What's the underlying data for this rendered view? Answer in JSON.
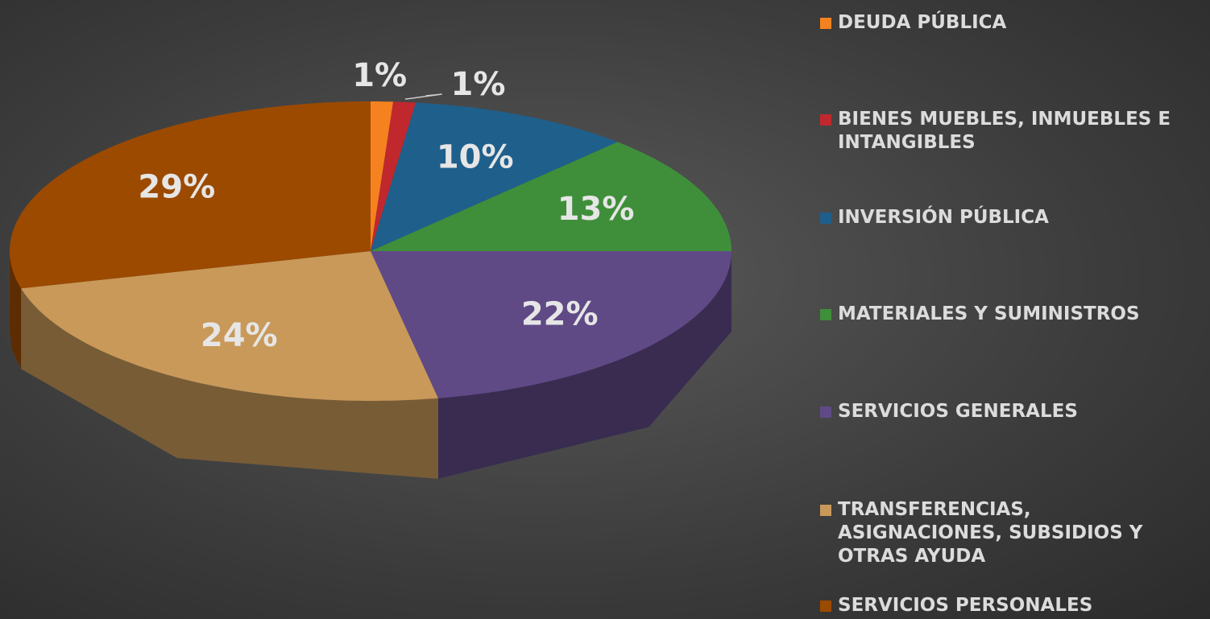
{
  "chart_data": {
    "type": "pie3d",
    "categories": [
      "DEUDA PÚBLICA",
      "BIENES MUEBLES, INMUEBLES E INTANGIBLES",
      "INVERSIÓN PÚBLICA",
      "MATERIALES Y SUMINISTROS",
      "SERVICIOS GENERALES",
      "TRANSFERENCIAS, ASIGNACIONES, SUBSIDIOS Y OTRAS AYUDA",
      "SERVICIOS PERSONALES"
    ],
    "values": [
      1,
      1,
      10,
      13,
      22,
      24,
      29
    ],
    "value_labels": [
      "1%",
      "1%",
      "10%",
      "13%",
      "22%",
      "24%",
      "29%"
    ],
    "colors": [
      "#f5821f",
      "#c0282d",
      "#1f5f8b",
      "#3f8f3a",
      "#5f4a86",
      "#c9995a",
      "#9c4a00"
    ],
    "legend": "right"
  }
}
